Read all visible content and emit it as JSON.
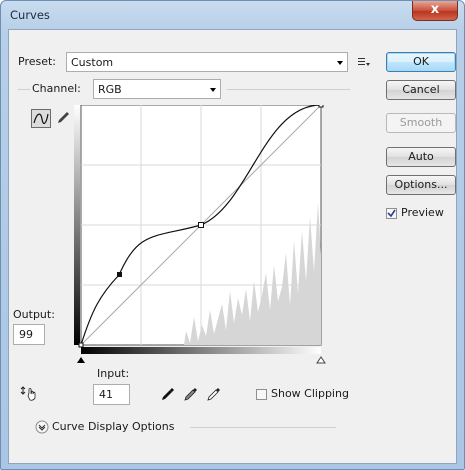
{
  "window": {
    "title": "Curves",
    "close_glyph": "x"
  },
  "preset": {
    "label": "Preset:",
    "value": "Custom"
  },
  "channel": {
    "label": "Channel:",
    "value": "RGB"
  },
  "buttons": {
    "ok": "OK",
    "cancel": "Cancel",
    "smooth": "Smooth",
    "auto": "Auto",
    "options": "Options..."
  },
  "preview": {
    "label": "Preview",
    "checked": true
  },
  "output": {
    "label": "Output:",
    "value": "99"
  },
  "input": {
    "label": "Input:",
    "value": "41"
  },
  "show_clipping": {
    "label": "Show Clipping",
    "checked": false
  },
  "curve_display_options": {
    "label": "Curve Display Options",
    "expanded": false
  },
  "icons": [
    "preset-menu-icon",
    "curve-point-tool-icon",
    "pencil-tool-icon",
    "targeted-adjustment-icon",
    "black-eyedropper-icon",
    "gray-eyedropper-icon",
    "white-eyedropper-icon",
    "expand-chevron-icon",
    "black-point-slider-icon",
    "white-point-slider-icon"
  ],
  "curve": {
    "points": [
      [
        0,
        0
      ],
      [
        41,
        99
      ],
      [
        128,
        128
      ],
      [
        255,
        255
      ]
    ],
    "selected_point": 1
  }
}
